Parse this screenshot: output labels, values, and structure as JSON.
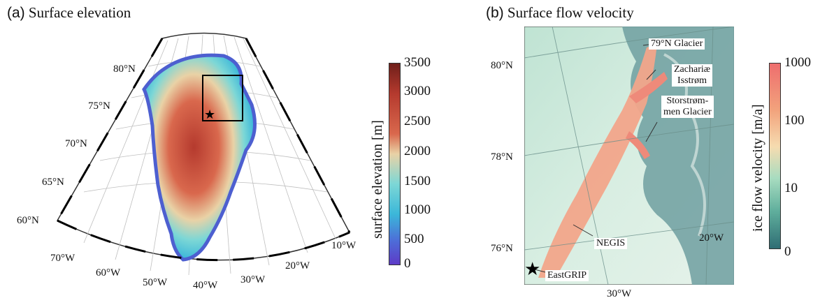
{
  "panel_a": {
    "title_letter": "(a)",
    "title_text": "Surface elevation",
    "lat_labels": [
      "80°N",
      "75°N",
      "70°N",
      "65°N",
      "60°N"
    ],
    "lon_labels": [
      "70°W",
      "60°W",
      "50°W",
      "40°W",
      "30°W",
      "20°W",
      "10°W"
    ],
    "colorbar": {
      "title": "surface elevation [m]",
      "ticks": [
        "3500",
        "3000",
        "2500",
        "2000",
        "1500",
        "1000",
        "500",
        "0"
      ],
      "colors": [
        "#6f1f1a",
        "#b53a2e",
        "#d9684d",
        "#e9d2a6",
        "#7cd7d6",
        "#3bb7d9",
        "#4d6ed8",
        "#5d3bc7"
      ]
    }
  },
  "panel_b": {
    "title_letter": "(b)",
    "title_text": "Surface flow velocity",
    "lat_labels": [
      "80°N",
      "78°N",
      "76°N"
    ],
    "lon_labels": [
      "30°W",
      "20°W"
    ],
    "annotations": {
      "glacier79": "79°N Glacier",
      "zachariae_1": "Zachariæ",
      "zachariae_2": "Isstrøm",
      "storstrommen_1": "Storstrøm-",
      "storstrommen_2": "men Glacier",
      "negis": "NEGIS",
      "eastgrip": "EastGRIP"
    },
    "colorbar": {
      "title": "ice flow velocity [m/a]",
      "ticks": [
        "1000",
        "100",
        "10",
        "0"
      ],
      "colors": [
        "#ee6e6e",
        "#f2a27c",
        "#f6dcb0",
        "#a8dcc0",
        "#5fae9c",
        "#2f6d74"
      ]
    }
  }
}
